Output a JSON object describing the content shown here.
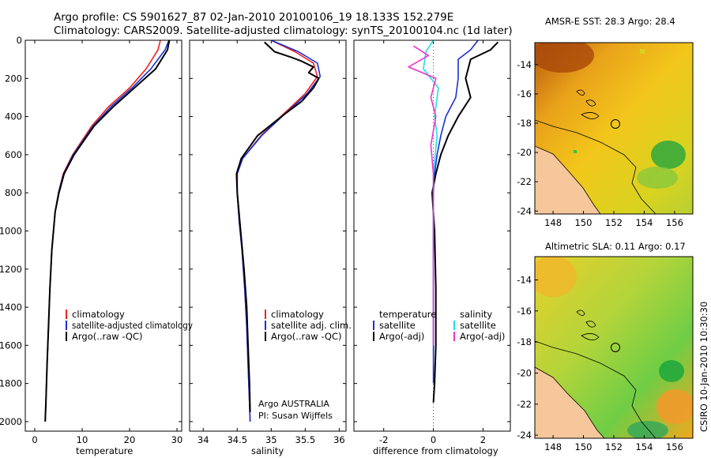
{
  "title": {
    "line1": "Argo profile: CS 5901627_87 02-Jan-2010 20100106_19 18.133S 152.279E",
    "line2": "Climatology: CARS2009. Satellite-adjusted climatology: synTS_20100104.nc (1d later)"
  },
  "colors": {
    "clim": "#ee2222",
    "sat": "#1a2fd6",
    "argo": "#000000",
    "sal_sat": "#22dde0",
    "sal_argo": "#ee33cc",
    "land": "#f6c79b"
  },
  "chart_data": [
    {
      "type": "line",
      "name": "temperature-profile",
      "xlabel": "temperature",
      "ylabel": "",
      "xlim": [
        -2,
        31
      ],
      "ylim": [
        0,
        2050
      ],
      "y_reversed": true,
      "xticks": [
        0,
        10,
        20,
        30
      ],
      "yticks": [
        0,
        200,
        400,
        600,
        800,
        1000,
        1200,
        1400,
        1600,
        1800,
        2000
      ],
      "legend": [
        "climatology",
        "satellite-adjusted climatology",
        "Argo(..raw -QC)"
      ],
      "series": [
        {
          "name": "climatology",
          "color_key": "clim",
          "x": [
            26.5,
            26.0,
            23.5,
            20.0,
            15.5,
            12.0,
            8.0,
            6.0,
            5.0,
            4.3,
            3.6,
            3.2,
            2.9,
            2.6,
            2.35,
            2.2
          ],
          "y": [
            0,
            50,
            150,
            250,
            350,
            450,
            600,
            700,
            800,
            900,
            1100,
            1300,
            1500,
            1700,
            1900,
            2000
          ]
        },
        {
          "name": "satellite-adjusted climatology",
          "color_key": "sat",
          "x": [
            28.3,
            27.5,
            24.5,
            20.5,
            16.0,
            12.3,
            8.1,
            6.1,
            5.0,
            4.3,
            3.6,
            3.2,
            2.9,
            2.6,
            2.35,
            2.2
          ],
          "y": [
            0,
            50,
            150,
            250,
            350,
            450,
            600,
            700,
            800,
            900,
            1100,
            1300,
            1500,
            1700,
            1900,
            2000
          ]
        },
        {
          "name": "Argo",
          "color_key": "argo",
          "x": [
            28.4,
            28.0,
            25.5,
            21.0,
            16.5,
            12.5,
            8.3,
            6.2,
            5.1,
            4.3,
            3.6,
            3.2,
            2.9,
            2.6,
            2.35,
            2.2
          ],
          "y": [
            0,
            50,
            150,
            250,
            350,
            450,
            600,
            700,
            800,
            900,
            1100,
            1300,
            1500,
            1700,
            1900,
            2000
          ]
        }
      ]
    },
    {
      "type": "line",
      "name": "salinity-profile",
      "xlabel": "salinity",
      "xlim": [
        33.8,
        36.1
      ],
      "ylim": [
        0,
        2050
      ],
      "y_reversed": true,
      "xticks": [
        34,
        34.5,
        35,
        35.5,
        36
      ],
      "legend": [
        "climatology",
        "satellite adj. clim.",
        "Argo(..raw -QC)"
      ],
      "annotation": [
        "Argo AUSTRALIA",
        "PI: Susan Wijffels"
      ],
      "series": [
        {
          "name": "climatology",
          "color_key": "clim",
          "x": [
            35.0,
            35.35,
            35.62,
            35.68,
            35.5,
            35.2,
            34.85,
            34.58,
            34.5,
            34.5,
            34.53,
            34.57,
            34.61,
            34.64,
            34.66,
            34.68,
            34.69
          ],
          "y": [
            0,
            60,
            120,
            190,
            280,
            380,
            500,
            620,
            700,
            800,
            950,
            1100,
            1300,
            1500,
            1700,
            1900,
            2000
          ]
        },
        {
          "name": "satellite adj. clim.",
          "color_key": "sat",
          "x": [
            35.0,
            35.4,
            35.68,
            35.72,
            35.53,
            35.22,
            34.86,
            34.58,
            34.5,
            34.5,
            34.53,
            34.57,
            34.61,
            34.64,
            34.66,
            34.68,
            34.69
          ],
          "y": [
            0,
            60,
            120,
            190,
            280,
            380,
            500,
            620,
            700,
            800,
            950,
            1100,
            1300,
            1500,
            1700,
            1900,
            2000
          ]
        },
        {
          "name": "Argo",
          "color_key": "argo",
          "x": [
            34.9,
            35.05,
            35.3,
            35.45,
            35.62,
            35.55,
            35.7,
            35.62,
            35.45,
            35.15,
            34.8,
            34.56,
            34.49,
            34.5,
            34.55,
            34.6,
            34.64,
            34.66,
            34.68,
            34.69
          ],
          "y": [
            10,
            60,
            90,
            110,
            140,
            170,
            200,
            250,
            320,
            400,
            500,
            620,
            700,
            800,
            1000,
            1200,
            1400,
            1600,
            1800,
            1950
          ]
        }
      ]
    },
    {
      "type": "line",
      "name": "difference-from-climatology",
      "xlabel": "difference from climatology",
      "xlim": [
        -3.2,
        3.1
      ],
      "ylim": [
        0,
        2050
      ],
      "y_reversed": true,
      "xticks": [
        -2,
        0,
        2
      ],
      "legend_left": [
        "temperature",
        "satellite",
        "Argo(-adj)"
      ],
      "legend_right": [
        "salinity",
        "satellite",
        "Argo(-adj)"
      ],
      "series": [
        {
          "name": "temperature satellite",
          "color_key": "sat",
          "x": [
            1.8,
            1.5,
            1.0,
            1.0,
            0.9,
            0.5,
            0.3,
            0.15,
            0.05,
            0.0,
            0.0,
            0.0,
            0.0,
            0.0
          ],
          "y": [
            0,
            50,
            100,
            200,
            300,
            400,
            500,
            600,
            700,
            800,
            1000,
            1300,
            1600,
            1800
          ]
        },
        {
          "name": "temperature Argo",
          "color_key": "argo",
          "x": [
            2.6,
            2.3,
            1.5,
            1.4,
            1.3,
            1.5,
            1.0,
            0.6,
            0.3,
            0.1,
            -0.05,
            0.05,
            0.1,
            0.1,
            0.05,
            0.0
          ],
          "y": [
            10,
            50,
            100,
            150,
            200,
            300,
            400,
            500,
            600,
            700,
            800,
            1000,
            1300,
            1600,
            1800,
            1900
          ]
        },
        {
          "name": "salinity satellite",
          "color_key": "sal_sat",
          "x": [
            0.0,
            -0.3,
            -0.4,
            0.2,
            0.05,
            0.15,
            0.0,
            0.0,
            0.0,
            0.0
          ],
          "y": [
            0,
            60,
            150,
            250,
            400,
            500,
            700,
            1000,
            1300,
            1600
          ]
        },
        {
          "name": "salinity Argo",
          "color_key": "sal_argo",
          "x": [
            -0.8,
            -0.2,
            -1.0,
            0.1,
            -0.1,
            0.1,
            -0.1,
            0.0,
            0.0,
            0.0,
            0.0
          ],
          "y": [
            30,
            80,
            140,
            200,
            300,
            400,
            550,
            700,
            900,
            1200,
            1600
          ]
        }
      ]
    },
    {
      "type": "heatmap",
      "name": "sst-map",
      "title": "AMSR-E SST: 28.3 Argo: 28.4",
      "xlim": [
        146.8,
        157.2
      ],
      "ylim": [
        -24.2,
        -12.5
      ],
      "xticks": [
        148,
        150,
        152,
        154,
        156
      ],
      "yticks": [
        -14,
        -16,
        -18,
        -20,
        -22,
        -24
      ],
      "argo_position": [
        152.279,
        -18.133
      ]
    },
    {
      "type": "heatmap",
      "name": "sla-map",
      "title": "Altimetric SLA: 0.11 Argo: 0.17",
      "xlim": [
        146.8,
        157.2
      ],
      "ylim": [
        -24.2,
        -12.5
      ],
      "xticks": [
        148,
        150,
        152,
        154,
        156
      ],
      "yticks": [
        -14,
        -16,
        -18,
        -20,
        -22,
        -24
      ],
      "argo_position": [
        152.279,
        -18.133
      ]
    }
  ],
  "footer_stamp": "CSIRO 10-Jan-2010 10:30:30"
}
